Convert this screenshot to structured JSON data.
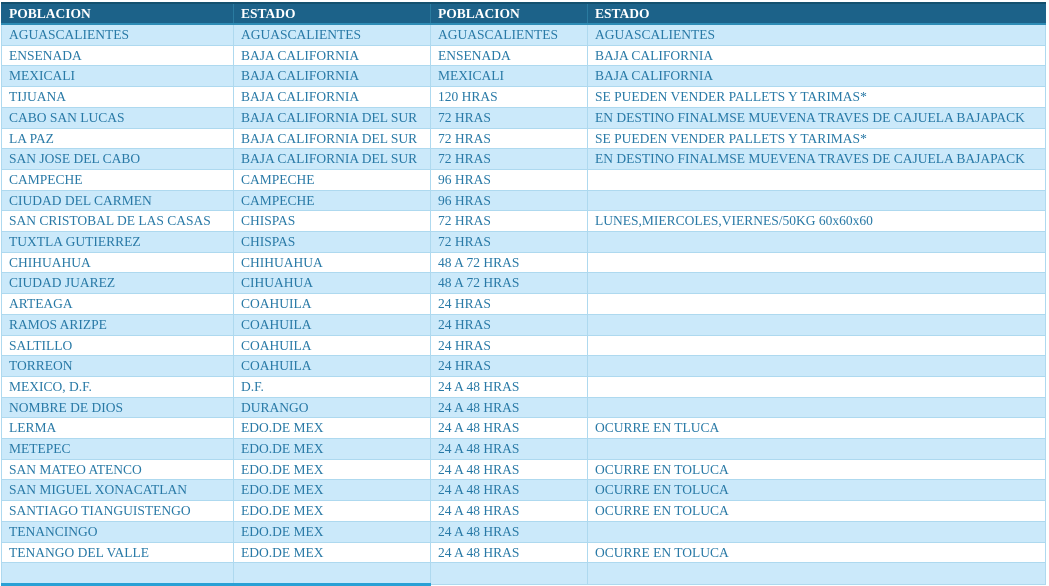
{
  "colors": {
    "header_bg": "#1c6289",
    "header_text": "#ffffff",
    "row_alt_bg": "#cbe9fa",
    "row_bg": "#ffffff",
    "body_text": "#2879a6",
    "grid_border": "#aed9ef",
    "bottom_accent_border": "#2aa0d5"
  },
  "table": {
    "columns": [
      "POBLACION",
      "ESTADO",
      "POBLACION",
      "ESTADO"
    ],
    "rows": [
      [
        "AGUASCALIENTES",
        "AGUASCALIENTES",
        "AGUASCALIENTES",
        "AGUASCALIENTES"
      ],
      [
        "ENSENADA",
        "BAJA CALIFORNIA",
        "ENSENADA",
        "BAJA CALIFORNIA"
      ],
      [
        "MEXICALI",
        "BAJA CALIFORNIA",
        "MEXICALI",
        "BAJA CALIFORNIA"
      ],
      [
        "TIJUANA",
        "BAJA CALIFORNIA",
        "120 HRAS",
        "SE PUEDEN VENDER PALLETS Y TARIMAS*"
      ],
      [
        "CABO SAN LUCAS",
        "BAJA CALIFORNIA DEL SUR",
        "72 HRAS",
        "EN DESTINO FINALMSE MUEVENA TRAVES DE CAJUELA BAJAPACK"
      ],
      [
        "LA PAZ",
        "BAJA CALIFORNIA DEL SUR",
        "72 HRAS",
        "SE PUEDEN VENDER PALLETS Y TARIMAS*"
      ],
      [
        "SAN JOSE DEL CABO",
        "BAJA CALIFORNIA DEL SUR",
        "72 HRAS",
        "EN DESTINO FINALMSE MUEVENA TRAVES DE CAJUELA BAJAPACK"
      ],
      [
        "CAMPECHE",
        "CAMPECHE",
        "96 HRAS",
        ""
      ],
      [
        "CIUDAD DEL CARMEN",
        "CAMPECHE",
        "96 HRAS",
        ""
      ],
      [
        "SAN CRISTOBAL DE LAS CASAS",
        "CHISPAS",
        "72 HRAS",
        "LUNES,MIERCOLES,VIERNES/50KG 60x60x60"
      ],
      [
        "TUXTLA GUTIERREZ",
        "CHISPAS",
        "72 HRAS",
        ""
      ],
      [
        "CHIHUAHUA",
        "CHIHUAHUA",
        "48 A 72 HRAS",
        ""
      ],
      [
        "CIUDAD JUAREZ",
        "CIHUAHUA",
        "48 A 72 HRAS",
        ""
      ],
      [
        "ARTEAGA",
        "COAHUILA",
        "24 HRAS",
        ""
      ],
      [
        "RAMOS ARIZPE",
        "COAHUILA",
        "24 HRAS",
        ""
      ],
      [
        "SALTILLO",
        "COAHUILA",
        "24 HRAS",
        ""
      ],
      [
        "TORREON",
        "COAHUILA",
        "24 HRAS",
        ""
      ],
      [
        "MEXICO, D.F.",
        "D.F.",
        "24 A 48 HRAS",
        ""
      ],
      [
        "NOMBRE DE DIOS",
        "DURANGO",
        "24 A 48 HRAS",
        ""
      ],
      [
        "LERMA",
        "EDO.DE MEX",
        "24 A 48 HRAS",
        "OCURRE EN TLUCA"
      ],
      [
        "METEPEC",
        "EDO.DE MEX",
        "24 A 48 HRAS",
        ""
      ],
      [
        "SAN MATEO ATENCO",
        "EDO.DE MEX",
        "24 A 48 HRAS",
        "OCURRE EN TOLUCA"
      ],
      [
        "SAN MIGUEL XONACATLAN",
        "EDO.DE MEX",
        "24 A 48 HRAS",
        "OCURRE EN TOLUCA"
      ],
      [
        "SANTIAGO TIANGUISTENGO",
        "EDO.DE MEX",
        "24 A 48 HRAS",
        "OCURRE EN TOLUCA"
      ],
      [
        "TENANCINGO",
        "EDO.DE MEX",
        "24 A 48 HRAS",
        ""
      ],
      [
        "TENANGO DEL VALLE",
        "EDO.DE MEX",
        "24 A 48 HRAS",
        "OCURRE EN TOLUCA"
      ],
      [
        "",
        "",
        "",
        ""
      ]
    ]
  }
}
